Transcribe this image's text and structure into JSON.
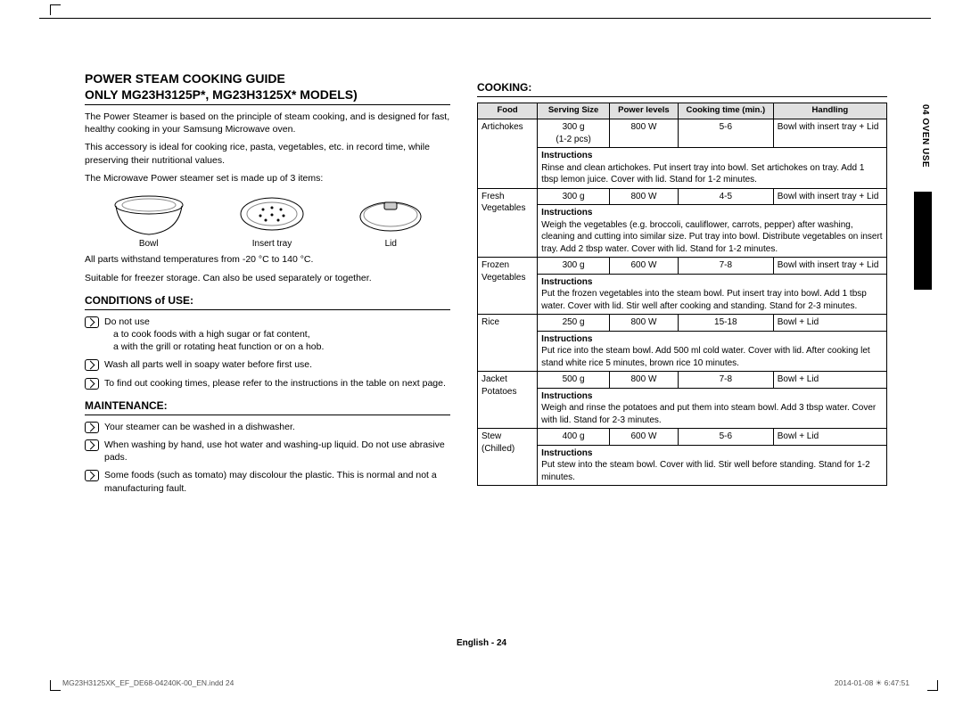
{
  "tabLabel": "04  OVEN USE",
  "left": {
    "title1": "POWER STEAM COOKING GUIDE",
    "title2": "ONLY MG23H3125P*, MG23H3125X* MODELS)",
    "intro1": "The Power Steamer is based on the principle of steam cooking, and is designed for fast, healthy cooking in your Samsung Microwave oven.",
    "intro2": "This accessory is ideal for cooking rice, pasta, vegetables, etc. in record time, while preserving their nutritional values.",
    "intro3": "The Microwave Power steamer set is made up of 3 items:",
    "parts": {
      "bowl": "Bowl",
      "tray": "Insert tray",
      "lid": "Lid"
    },
    "temp": "All parts withstand temperatures from -20 °C to 140 °C.",
    "freezer": "Suitable for freezer storage. Can also be used separately or together.",
    "conditionsHeading": "CONDITIONS of USE:",
    "cond1": "Do not use",
    "cond1a": "a to cook foods with a high sugar or fat content,",
    "cond1b": "a with the grill or rotating heat function or on a hob.",
    "cond2": "Wash all parts well in soapy water before first use.",
    "cond3": "To find out cooking times, please refer to the instructions in the table on next page.",
    "maintHeading": "MAINTENANCE:",
    "maint1": "Your steamer can be washed in a dishwasher.",
    "maint2": "When washing by hand, use hot water and washing-up liquid. Do not use abrasive pads.",
    "maint3": "Some foods (such as tomato) may discolour the plastic. This is normal and not a manufacturing fault."
  },
  "right": {
    "heading": "COOKING:",
    "headers": {
      "food": "Food",
      "serving": "Serving Size",
      "power": "Power levels",
      "time": "Cooking time (min.)",
      "handling": "Handling"
    },
    "instrLabel": "Instructions",
    "rows": [
      {
        "food": "Artichokes",
        "size": "300 g\n(1-2 pcs)",
        "power": "800 W",
        "time": "5-6",
        "handling": "Bowl with insert tray + Lid",
        "instructions": "Rinse and clean artichokes. Put insert tray into bowl. Set artichokes on tray. Add 1 tbsp lemon juice. Cover with lid. Stand for 1-2 minutes."
      },
      {
        "food": "Fresh Vegetables",
        "size": "300 g",
        "power": "800 W",
        "time": "4-5",
        "handling": "Bowl with insert tray + Lid",
        "instructions": "Weigh the vegetables (e.g. broccoli, cauliflower, carrots, pepper) after washing, cleaning and cutting into similar size. Put tray into bowl. Distribute vegetables on insert tray. Add 2 tbsp water. Cover with lid. Stand for 1-2 minutes."
      },
      {
        "food": "Frozen Vegetables",
        "size": "300 g",
        "power": "600 W",
        "time": "7-8",
        "handling": "Bowl with insert tray + Lid",
        "instructions": "Put the frozen vegetables into the steam bowl. Put insert tray into bowl. Add 1 tbsp water. Cover with lid. Stir well after cooking and standing. Stand for 2-3 minutes."
      },
      {
        "food": "Rice",
        "size": "250 g",
        "power": "800 W",
        "time": "15-18",
        "handling": "Bowl + Lid",
        "instructions": "Put rice into the steam bowl. Add 500 ml cold water. Cover with lid. After cooking let stand white rice 5 minutes, brown rice 10 minutes."
      },
      {
        "food": "Jacket Potatoes",
        "size": "500 g",
        "power": "800 W",
        "time": "7-8",
        "handling": "Bowl + Lid",
        "instructions": "Weigh and rinse the potatoes and put them into steam bowl. Add 3 tbsp water. Cover with lid. Stand for 2-3 minutes."
      },
      {
        "food": "Stew (Chilled)",
        "size": "400 g",
        "power": "600 W",
        "time": "5-6",
        "handling": "Bowl + Lid",
        "instructions": "Put stew into the steam bowl. Cover with lid. Stir well before standing. Stand for 1-2 minutes."
      }
    ]
  },
  "footer": "English - 24",
  "printLeft": "MG23H3125XK_EF_DE68-04240K-00_EN.indd   24",
  "printRight": "2014-01-08   ☀ 6:47:51"
}
